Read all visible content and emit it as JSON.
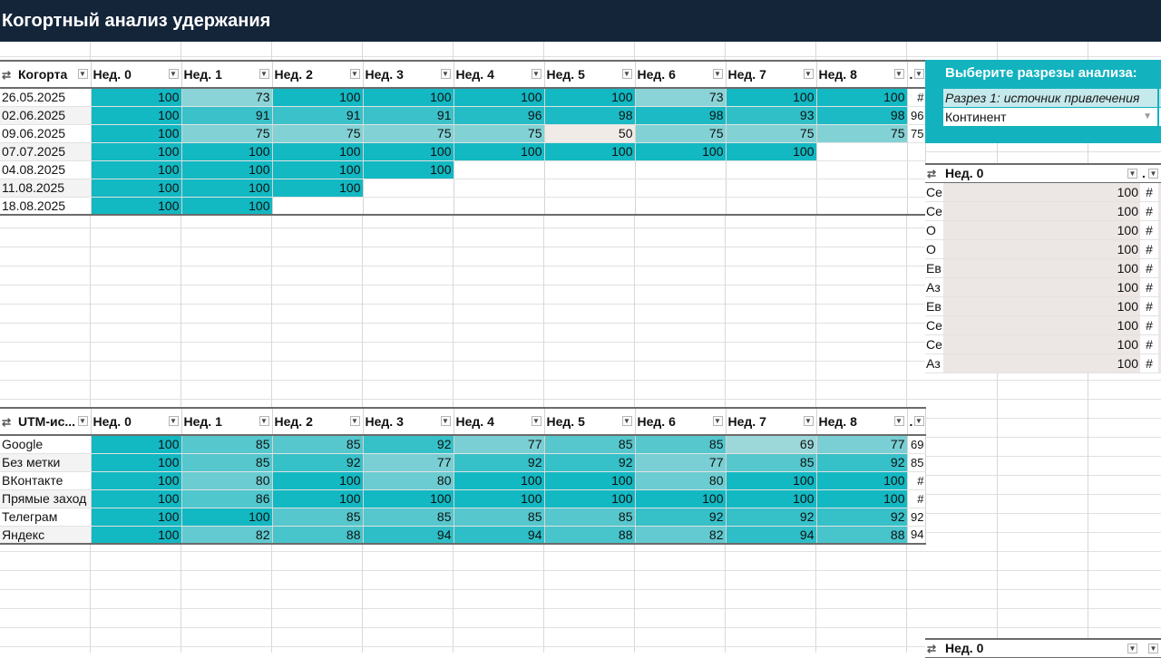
{
  "title": "Когортный анализ удержания",
  "cohort_table": {
    "columns": [
      "Когорта",
      "Нед. 0",
      "Нед. 1",
      "Нед. 2",
      "Нед. 3",
      "Нед. 4",
      "Нед. 5",
      "Нед. 6",
      "Нед. 7",
      "Нед. 8",
      "."
    ],
    "rows": [
      {
        "label": "26.05.2025",
        "values": [
          "100",
          "73",
          "100",
          "100",
          "100",
          "100",
          "73",
          "100",
          "100",
          "#"
        ]
      },
      {
        "label": "02.06.2025",
        "values": [
          "100",
          "91",
          "91",
          "91",
          "96",
          "98",
          "98",
          "93",
          "98",
          "96"
        ]
      },
      {
        "label": "09.06.2025",
        "values": [
          "100",
          "75",
          "75",
          "75",
          "75",
          "50",
          "75",
          "75",
          "75",
          "75"
        ]
      },
      {
        "label": "07.07.2025",
        "values": [
          "100",
          "100",
          "100",
          "100",
          "100",
          "100",
          "100",
          "100",
          "",
          ""
        ]
      },
      {
        "label": "04.08.2025",
        "values": [
          "100",
          "100",
          "100",
          "100",
          "",
          "",
          "",
          "",
          "",
          ""
        ]
      },
      {
        "label": "11.08.2025",
        "values": [
          "100",
          "100",
          "100",
          "",
          "",
          "",
          "",
          "",
          "",
          ""
        ]
      },
      {
        "label": "18.08.2025",
        "values": [
          "100",
          "100",
          "",
          "",
          "",
          "",
          "",
          "",
          "",
          ""
        ]
      }
    ]
  },
  "utm_table": {
    "columns": [
      "UTM-ис...",
      "Нед. 0",
      "Нед. 1",
      "Нед. 2",
      "Нед. 3",
      "Нед. 4",
      "Нед. 5",
      "Нед. 6",
      "Нед. 7",
      "Нед. 8",
      "."
    ],
    "rows": [
      {
        "label": "Google",
        "values": [
          "100",
          "85",
          "85",
          "92",
          "77",
          "85",
          "85",
          "69",
          "77",
          "69"
        ]
      },
      {
        "label": "Без метки",
        "values": [
          "100",
          "85",
          "92",
          "77",
          "92",
          "92",
          "77",
          "85",
          "92",
          "85"
        ]
      },
      {
        "label": "ВКонтакте",
        "values": [
          "100",
          "80",
          "100",
          "80",
          "100",
          "100",
          "80",
          "100",
          "100",
          "#"
        ]
      },
      {
        "label": "Прямые заход",
        "values": [
          "100",
          "86",
          "100",
          "100",
          "100",
          "100",
          "100",
          "100",
          "100",
          "#"
        ]
      },
      {
        "label": "Телеграм",
        "values": [
          "100",
          "100",
          "85",
          "85",
          "85",
          "85",
          "92",
          "92",
          "92",
          "92"
        ]
      },
      {
        "label": "Яндекс",
        "values": [
          "100",
          "82",
          "88",
          "94",
          "94",
          "88",
          "82",
          "94",
          "88",
          "94"
        ]
      }
    ]
  },
  "slicer_panel": {
    "title": "Выберите разрезы анализа:",
    "slice1_label": "Разрез 1: источник привлечения",
    "slice1_value": "Континент"
  },
  "right_table": {
    "header": "Нед. 0",
    "header2": ".",
    "rows": [
      {
        "label": "Се",
        "value": "100",
        "extra": "#"
      },
      {
        "label": "Се",
        "value": "100",
        "extra": "#"
      },
      {
        "label": "О",
        "value": "100",
        "extra": "#"
      },
      {
        "label": "О",
        "value": "100",
        "extra": "#"
      },
      {
        "label": "Ев",
        "value": "100",
        "extra": "#"
      },
      {
        "label": "Аз",
        "value": "100",
        "extra": "#"
      },
      {
        "label": "Ев",
        "value": "100",
        "extra": "#"
      },
      {
        "label": "Се",
        "value": "100",
        "extra": "#"
      },
      {
        "label": "Се",
        "value": "100",
        "extra": "#"
      },
      {
        "label": "Аз",
        "value": "100",
        "extra": "#"
      }
    ]
  },
  "bottom_right_header": "Нед. 0",
  "colors": {
    "title_bg": "#14253a",
    "accent": "#12b2bf",
    "low_cell": "#f1ebe8"
  }
}
